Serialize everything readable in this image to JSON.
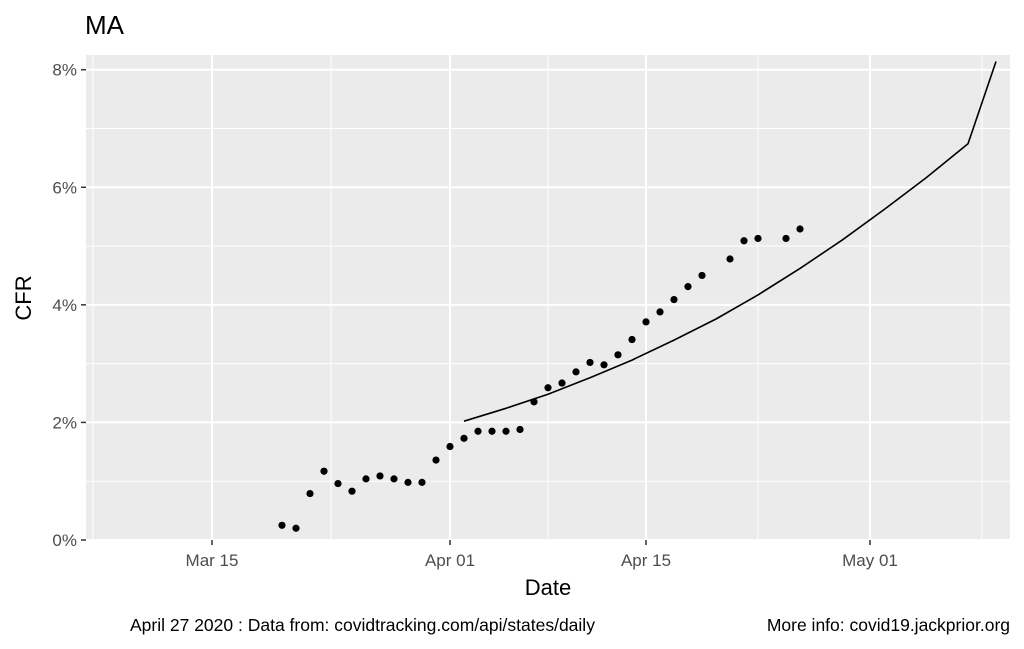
{
  "chart_data": {
    "type": "scatter",
    "title": "MA",
    "xlabel": "Date",
    "ylabel": "CFR",
    "xlim": [
      "2020-03-06",
      "2020-05-11"
    ],
    "ylim": [
      0,
      8.25
    ],
    "x_ticks": [
      {
        "date": "2020-03-15",
        "label": "Mar 15"
      },
      {
        "date": "2020-04-01",
        "label": "Apr 01"
      },
      {
        "date": "2020-04-15",
        "label": "Apr 15"
      },
      {
        "date": "2020-05-01",
        "label": "May 01"
      }
    ],
    "y_ticks": [
      {
        "value": 0,
        "label": "0%"
      },
      {
        "value": 2,
        "label": "2%"
      },
      {
        "value": 4,
        "label": "4%"
      },
      {
        "value": 6,
        "label": "6%"
      },
      {
        "value": 8,
        "label": "8%"
      }
    ],
    "grid": true,
    "series": [
      {
        "kind": "points",
        "x": [
          "2020-03-20",
          "2020-03-21",
          "2020-03-22",
          "2020-03-23",
          "2020-03-24",
          "2020-03-25",
          "2020-03-26",
          "2020-03-27",
          "2020-03-28",
          "2020-03-29",
          "2020-03-30",
          "2020-03-31",
          "2020-04-01",
          "2020-04-02",
          "2020-04-03",
          "2020-04-04",
          "2020-04-05",
          "2020-04-06",
          "2020-04-07",
          "2020-04-08",
          "2020-04-09",
          "2020-04-10",
          "2020-04-11",
          "2020-04-12",
          "2020-04-13",
          "2020-04-14",
          "2020-04-15",
          "2020-04-16",
          "2020-04-17",
          "2020-04-18",
          "2020-04-19",
          "2020-04-21",
          "2020-04-22",
          "2020-04-23",
          "2020-04-25",
          "2020-04-26"
        ],
        "y": [
          0.25,
          0.2,
          0.79,
          1.17,
          0.96,
          0.83,
          1.04,
          1.09,
          1.04,
          0.98,
          0.98,
          1.36,
          1.59,
          1.73,
          1.85,
          1.85,
          1.85,
          1.88,
          2.35,
          2.59,
          2.67,
          2.86,
          3.02,
          2.98,
          3.15,
          3.41,
          3.71,
          3.88,
          4.09,
          4.31,
          4.5,
          4.78,
          5.09,
          5.13,
          5.13,
          5.29
        ]
      },
      {
        "kind": "line",
        "x": [
          "2020-04-02",
          "2020-04-05",
          "2020-04-08",
          "2020-04-11",
          "2020-04-14",
          "2020-04-17",
          "2020-04-20",
          "2020-04-23",
          "2020-04-26",
          "2020-04-29",
          "2020-05-02",
          "2020-05-05",
          "2020-05-08",
          "2020-05-10"
        ],
        "y": [
          2.02,
          2.24,
          2.48,
          2.76,
          3.06,
          3.4,
          3.76,
          4.17,
          4.62,
          5.1,
          5.62,
          6.16,
          6.74,
          8.14
        ]
      }
    ],
    "caption_left": "April 27 2020 : Data from: covidtracking.com/api/states/daily",
    "caption_right": "More info: covid19.jackprior.org"
  }
}
